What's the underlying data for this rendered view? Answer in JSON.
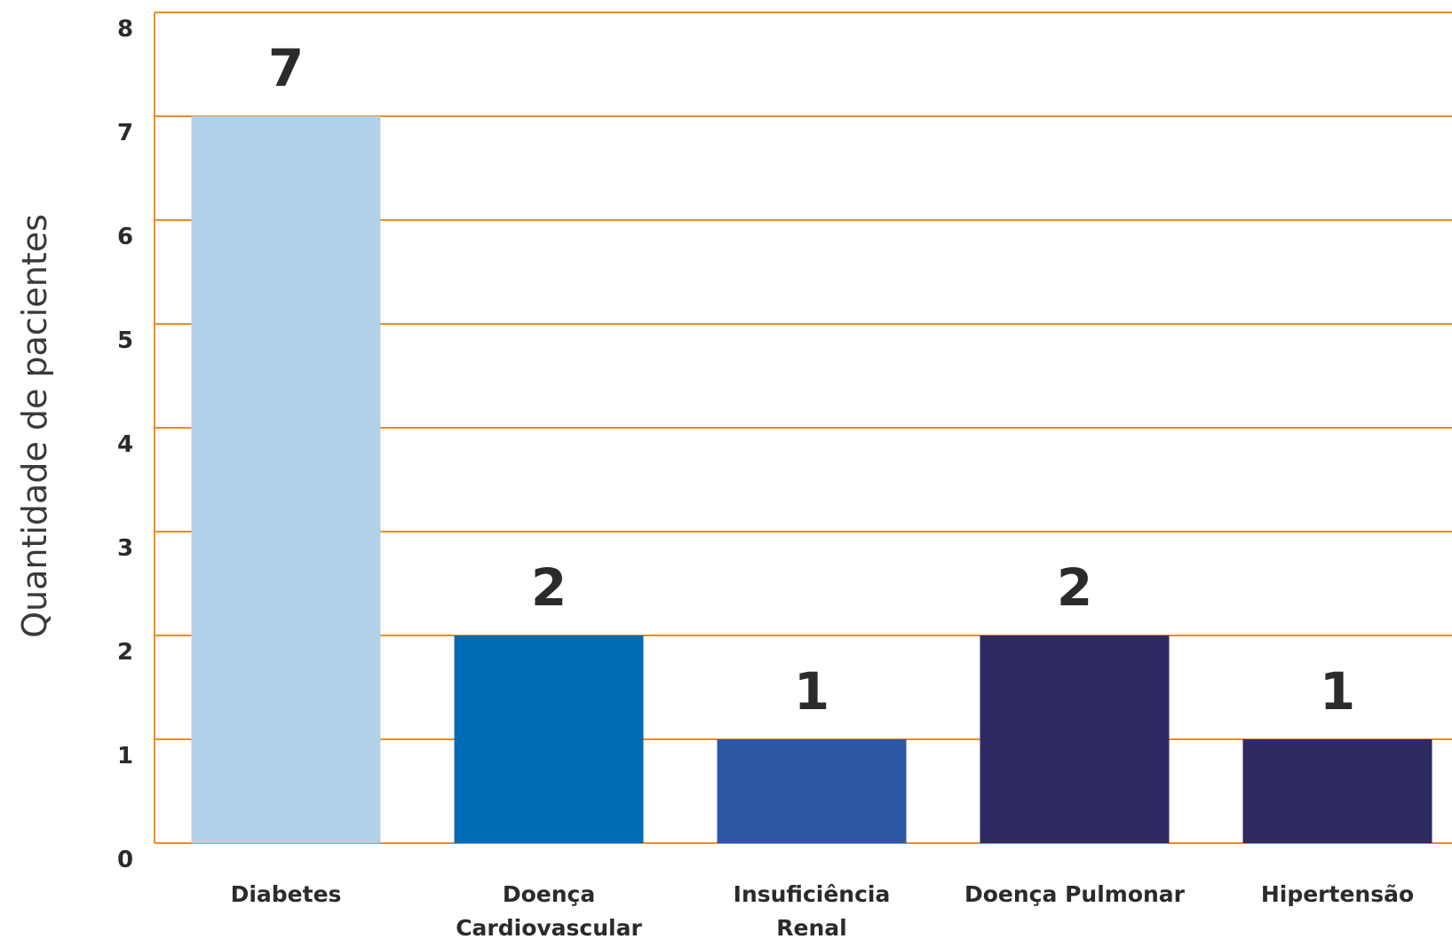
{
  "chart_data": {
    "type": "bar",
    "categories": [
      "Diabetes",
      "Doença Cardiovascular",
      "Insuficiência Renal",
      "Doença Pulmonar",
      "Hipertensão"
    ],
    "category_lines": [
      [
        "Diabetes"
      ],
      [
        "Doença",
        "Cardiovascular"
      ],
      [
        "Insuficiência",
        "Renal"
      ],
      [
        "Doença Pulmonar"
      ],
      [
        "Hipertensão"
      ]
    ],
    "values": [
      7,
      2,
      1,
      2,
      1
    ],
    "data_labels": [
      "7",
      "2",
      "1",
      "2",
      "1"
    ],
    "bar_colors": [
      "#b2d1e8",
      "#006bb5",
      "#2d56a4",
      "#2e2a64",
      "#2e2a64"
    ],
    "grid_color": "#f08a24",
    "ylabel": "Quantidade de pacientes",
    "xlabel": "",
    "ylim": [
      0,
      8
    ],
    "yticks": [
      "0",
      "1",
      "2",
      "3",
      "4",
      "5",
      "6",
      "7",
      "8"
    ],
    "grid": true
  }
}
